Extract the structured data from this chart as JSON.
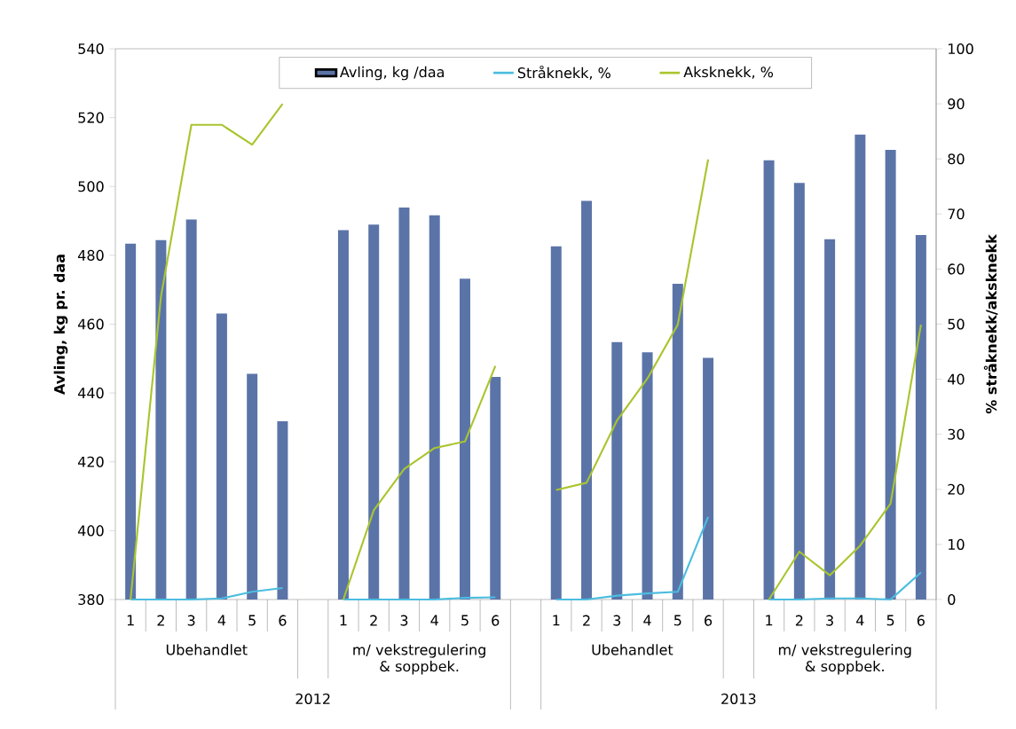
{
  "chart_data": {
    "type": "bar",
    "ylabel": "Avling, kg pr. daa",
    "y2label": "% stråknekk/aksknekk",
    "categories": [
      "1",
      "2",
      "3",
      "4",
      "5",
      "6",
      null,
      "1",
      "2",
      "3",
      "4",
      "5",
      "6",
      null,
      "1",
      "2",
      "3",
      "4",
      "5",
      "6",
      null,
      "1",
      "2",
      "3",
      "4",
      "5",
      "6"
    ],
    "series": [
      {
        "name": "Avling, kg /daa",
        "color": "#5b74a8",
        "values": [
          483.4,
          484.4,
          490.4,
          463.1,
          445.6,
          431.8,
          null,
          487.3,
          488.9,
          493.9,
          491.6,
          473.2,
          444.7,
          null,
          482.6,
          495.8,
          454.8,
          451.8,
          471.7,
          450.2,
          null,
          507.6,
          501.0,
          484.7,
          515.1,
          510.6,
          485.9
        ]
      },
      {
        "name": "Stråknekk, %",
        "type": "line",
        "axis": "y2",
        "color": "#4bbde0",
        "values": [
          0,
          0,
          0,
          0.2,
          1.4,
          2.1,
          null,
          0,
          0,
          0,
          0,
          0.3,
          0.4,
          null,
          0,
          0,
          0.7,
          1.1,
          1.4,
          15.0,
          null,
          0,
          0,
          0.2,
          0.2,
          0,
          4.9
        ]
      },
      {
        "name": "Aksknekk, %",
        "type": "line",
        "axis": "y2",
        "color": "#a9c52f",
        "values": [
          0,
          55.0,
          86.2,
          86.2,
          82.6,
          90.0,
          null,
          0,
          16.2,
          23.7,
          27.5,
          28.7,
          42.4,
          null,
          19.9,
          21.2,
          32.5,
          40.1,
          49.9,
          79.9,
          null,
          0,
          8.7,
          4.4,
          9.8,
          17.4,
          49.9
        ]
      }
    ],
    "ylim": [
      380,
      540
    ],
    "yticks": [
      380,
      400,
      420,
      440,
      460,
      480,
      500,
      520,
      540
    ],
    "y2lim": [
      0,
      100
    ],
    "y2ticks": [
      0,
      10,
      20,
      30,
      40,
      50,
      60,
      70,
      80,
      90,
      100
    ],
    "legend": "top",
    "annotations": [
      "Ubehandlet",
      "m/ vekstregulering & soppbek.",
      "Ubehandlet",
      "m/ vekstregulering & soppbek.",
      "2012",
      "2013"
    ]
  }
}
